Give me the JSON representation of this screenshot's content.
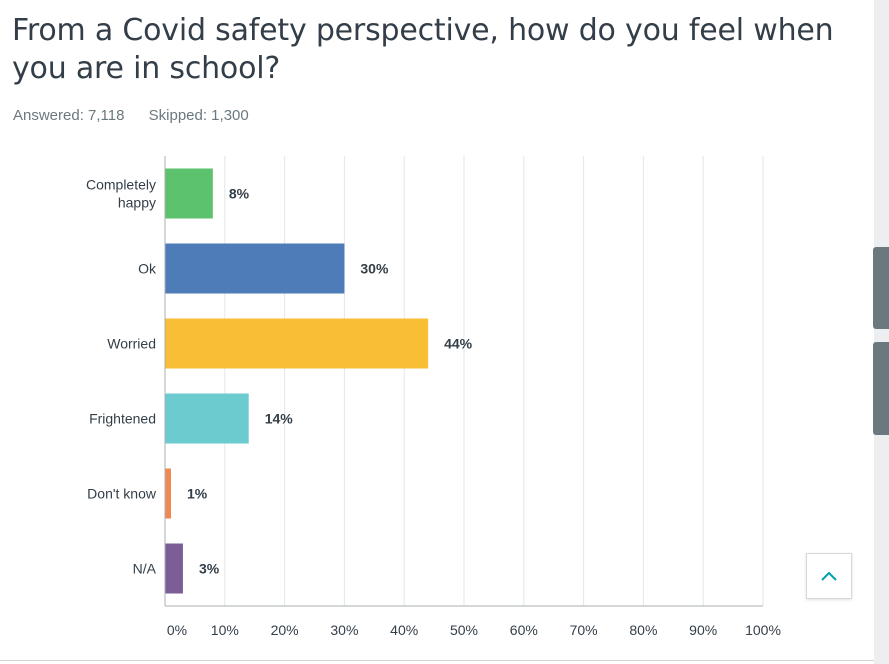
{
  "question": {
    "title": "From a Covid safety perspective, how do you feel when you are in school?",
    "answered": "Answered: 7,118",
    "skipped": "Skipped: 1,300"
  },
  "chart_data": {
    "type": "bar",
    "orientation": "horizontal",
    "categories": [
      "Completely happy",
      "Ok",
      "Worried",
      "Frightened",
      "Don't know",
      "N/A"
    ],
    "values": [
      8,
      30,
      44,
      14,
      1,
      3
    ],
    "value_labels": [
      "8%",
      "30%",
      "44%",
      "14%",
      "1%",
      "3%"
    ],
    "colors": [
      "#5dc26d",
      "#4e7cb9",
      "#f8be35",
      "#6ccbce",
      "#f0884f",
      "#7b5e96"
    ],
    "xlim": [
      0,
      100
    ],
    "x_ticks": [
      "0%",
      "10%",
      "20%",
      "30%",
      "40%",
      "50%",
      "60%",
      "70%",
      "80%",
      "90%",
      "100%"
    ],
    "grid": true,
    "title": "",
    "xlabel": "",
    "ylabel": ""
  },
  "ui": {
    "scroll_top_icon": "chevron-up-icon",
    "accent_color": "#00a0b2"
  }
}
